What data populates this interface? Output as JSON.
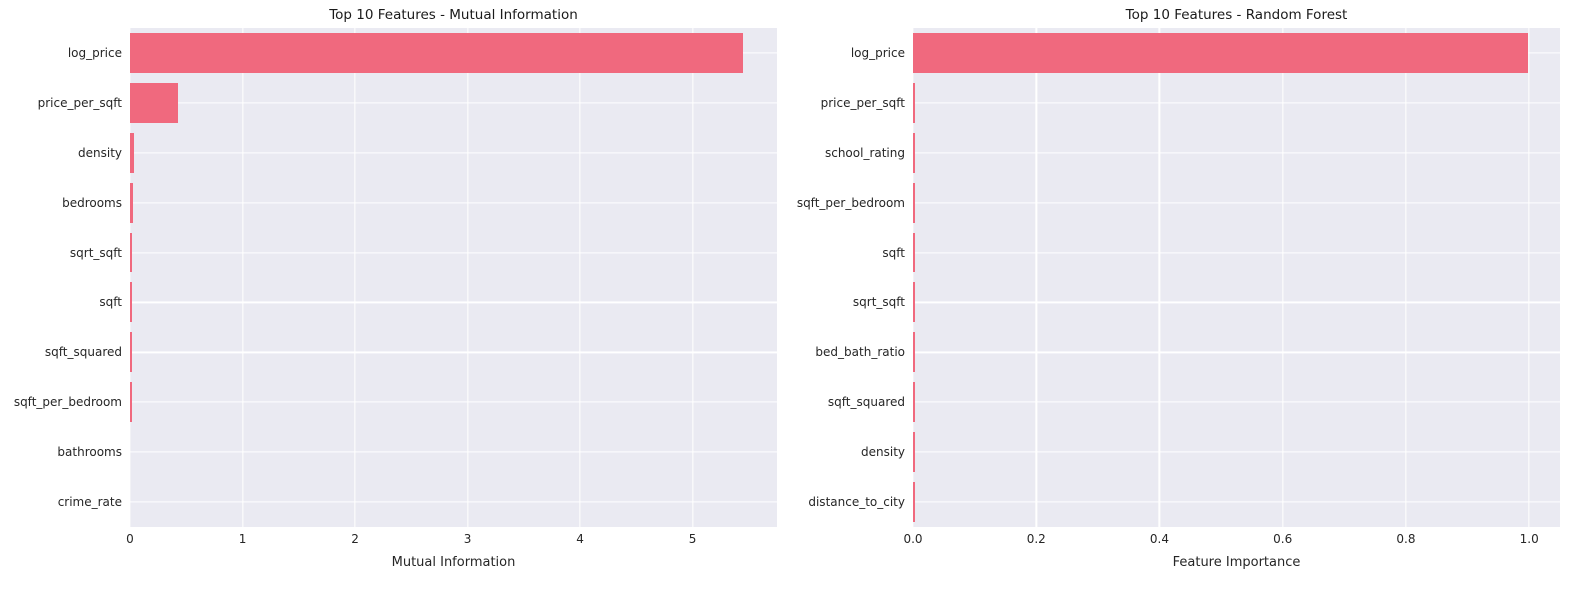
{
  "figure": {
    "background": "#ffffff"
  },
  "chart_data": [
    {
      "type": "bar",
      "orientation": "horizontal",
      "title": "Top 10 Features - Mutual Information",
      "xlabel": "Mutual Information",
      "ylabel": "",
      "categories": [
        "log_price",
        "price_per_sqft",
        "density",
        "bedrooms",
        "sqrt_sqft",
        "sqft",
        "sqft_squared",
        "sqft_per_bedroom",
        "bathrooms",
        "crime_rate"
      ],
      "values": [
        5.45,
        0.43,
        0.035,
        0.025,
        0.016,
        0.015,
        0.013,
        0.012,
        0.0,
        0.0
      ],
      "xlim": [
        0,
        5.75
      ],
      "xticks": [
        0,
        1,
        2,
        3,
        4,
        5
      ],
      "xtick_labels": [
        "0",
        "1",
        "2",
        "3",
        "4",
        "5"
      ],
      "grid": true,
      "legend": false,
      "bar_color": "#f0697e",
      "plot_bg": "#eaeaf2",
      "grid_color": "#ffffff"
    },
    {
      "type": "bar",
      "orientation": "horizontal",
      "title": "Top 10 Features - Random Forest",
      "xlabel": "Feature Importance",
      "ylabel": "",
      "categories": [
        "log_price",
        "price_per_sqft",
        "school_rating",
        "sqft_per_bedroom",
        "sqft",
        "sqrt_sqft",
        "bed_bath_ratio",
        "sqft_squared",
        "density",
        "distance_to_city"
      ],
      "values": [
        0.998,
        0.002,
        0.0016,
        0.0012,
        0.001,
        0.0009,
        0.0008,
        0.0007,
        0.0006,
        0.0005
      ],
      "xlim": [
        0,
        1.05
      ],
      "xticks": [
        0,
        0.2,
        0.4,
        0.6,
        0.8,
        1.0
      ],
      "xtick_labels": [
        "0.0",
        "0.2",
        "0.4",
        "0.6",
        "0.8",
        "1.0"
      ],
      "grid": true,
      "legend": false,
      "bar_color": "#f0697e",
      "plot_bg": "#eaeaf2",
      "grid_color": "#ffffff"
    }
  ]
}
